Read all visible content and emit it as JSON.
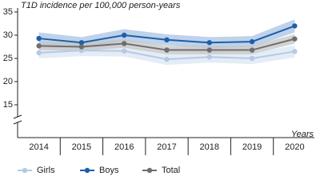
{
  "chart_data": {
    "type": "line",
    "title": "T1D incidence per 100,000 person-years",
    "x_label": "Years",
    "categories": [
      "2014",
      "2015",
      "2016",
      "2017",
      "2018",
      "2019",
      "2020"
    ],
    "series": [
      {
        "name": "Girls",
        "color": "#b5c9e6",
        "band_color": "#dbe5f3",
        "values": [
          26.2,
          26.7,
          26.6,
          24.8,
          25.3,
          25.0,
          26.5
        ],
        "lower": [
          25.0,
          25.5,
          25.4,
          23.6,
          24.1,
          23.8,
          25.2
        ],
        "upper": [
          27.4,
          27.9,
          27.8,
          26.0,
          26.5,
          26.2,
          27.8
        ]
      },
      {
        "name": "Boys",
        "color": "#1a60aa",
        "band_color": "#a9c3e3",
        "values": [
          29.3,
          28.4,
          30.0,
          29.0,
          28.4,
          28.6,
          32.0
        ],
        "lower": [
          28.0,
          27.2,
          28.7,
          27.8,
          27.2,
          27.4,
          30.6
        ],
        "upper": [
          30.6,
          29.6,
          31.3,
          30.2,
          29.6,
          29.8,
          33.4
        ]
      },
      {
        "name": "Total",
        "color": "#6e6e6e",
        "band_color": "#c4c4c4",
        "values": [
          27.7,
          27.5,
          28.2,
          26.8,
          26.8,
          26.8,
          29.2
        ],
        "lower": [
          26.8,
          26.6,
          27.3,
          25.9,
          25.9,
          25.9,
          28.2
        ],
        "upper": [
          28.6,
          28.4,
          29.1,
          27.7,
          27.7,
          27.7,
          30.2
        ]
      }
    ],
    "ylim": [
      10,
      35
    ],
    "yticks": [
      15,
      20,
      25,
      30,
      35
    ],
    "axis_break": true
  }
}
